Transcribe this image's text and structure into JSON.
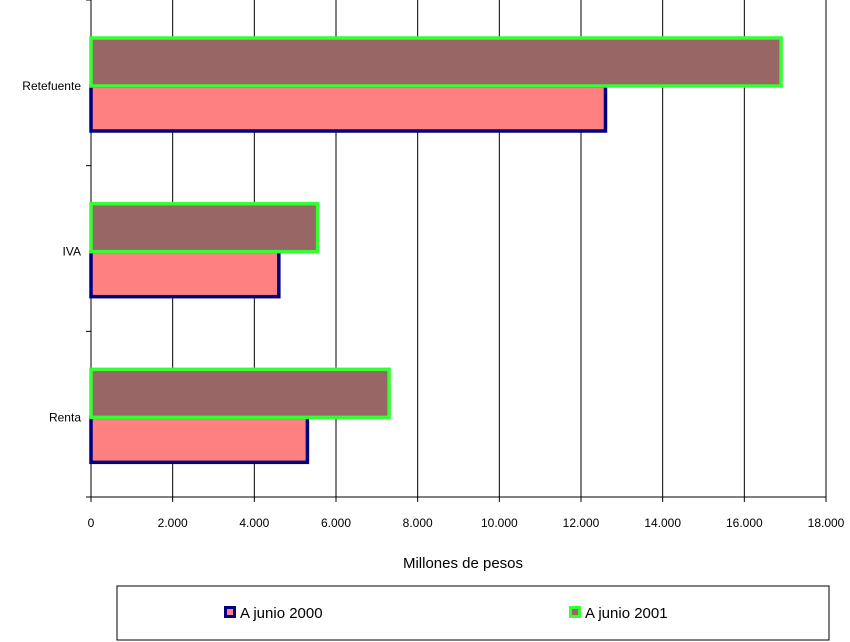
{
  "chart_data": {
    "type": "bar",
    "orientation": "horizontal",
    "x_label": "Millones de pesos",
    "categories": [
      "Retefuente",
      "IVA",
      "Renta"
    ],
    "series": [
      {
        "name": "A junio 2000",
        "color": "#ff8080",
        "edge_color": "#000080",
        "values": [
          12600,
          4600,
          5300
        ]
      },
      {
        "name": "A junio 2001",
        "color": "#996666",
        "edge_color": "#33ff33",
        "values": [
          16900,
          5550,
          7300
        ]
      }
    ],
    "xlim": [
      0,
      18000
    ],
    "xticks": [
      0,
      {
        "value": 2000,
        "label": "2.000"
      },
      {
        "value": 4000,
        "label": "4.000"
      },
      {
        "value": 6000,
        "label": "6.000"
      },
      {
        "value": 8000,
        "label": "8.000"
      },
      {
        "value": 10000,
        "label": "10.000"
      },
      {
        "value": 12000,
        "label": "12.000"
      },
      {
        "value": 14000,
        "label": "14.000"
      },
      {
        "value": 16000,
        "label": "16.000"
      },
      {
        "value": 18000,
        "label": "18.000"
      }
    ],
    "grid": true
  }
}
